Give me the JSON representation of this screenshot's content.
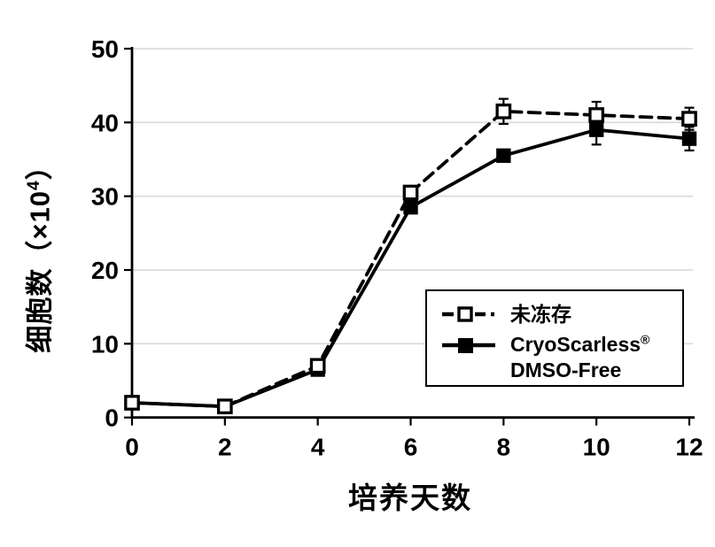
{
  "chart_data": {
    "type": "line",
    "title": "",
    "xlabel": "培养天数",
    "ylabel": "细胞数（×10⁴）",
    "ylabel_parts": {
      "prefix": "细胞数（×10",
      "sup": "4",
      "suffix": "）"
    },
    "x": [
      0,
      2,
      4,
      6,
      8,
      10,
      12
    ],
    "xlim": [
      0,
      12
    ],
    "ylim": [
      0,
      50
    ],
    "xticks": [
      0,
      2,
      4,
      6,
      8,
      10,
      12
    ],
    "yticks": [
      0,
      10,
      20,
      30,
      40,
      50
    ],
    "grid": "horizontal-only",
    "gridline_color": "#d9d9d9",
    "axis_color": "#000000",
    "series": [
      {
        "name": "未冻存",
        "line_style": "dashed",
        "marker": "open-square",
        "color": "#000000",
        "values": [
          2,
          1.5,
          7,
          30.5,
          41.5,
          41,
          40.5
        ],
        "errors": [
          0,
          0,
          0,
          0,
          1.7,
          1.8,
          1.5
        ]
      },
      {
        "name": "CryoScarless® DMSO-Free",
        "line_style": "solid",
        "marker": "filled-square",
        "color": "#000000",
        "values": [
          2,
          1.5,
          6.5,
          28.5,
          35.5,
          39,
          37.8
        ],
        "errors": [
          0,
          0,
          0,
          0,
          0,
          2,
          1.6
        ]
      }
    ],
    "legend": {
      "position": "inside-lower-right",
      "items": [
        {
          "label": "未冻存"
        },
        {
          "label_line1_main": "CryoScarless",
          "label_line1_reg": "®",
          "label_line2": "DMSO-Free"
        }
      ]
    }
  }
}
